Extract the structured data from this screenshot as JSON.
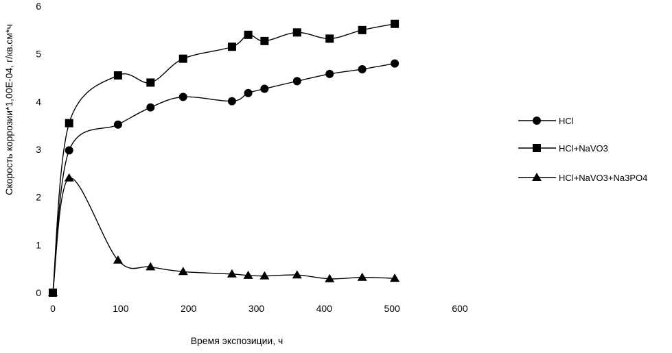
{
  "chart_data": {
    "type": "line",
    "title": "",
    "xlabel": "Время экспозиции, ч",
    "ylabel": "Скорость коррозии*1,00Е-04, г/кв.см*ч",
    "xlim": [
      0,
      600
    ],
    "ylim": [
      0,
      6
    ],
    "xticks": [
      0,
      100,
      200,
      300,
      400,
      500,
      600
    ],
    "yticks": [
      0,
      1,
      2,
      3,
      4,
      5,
      6
    ],
    "grid": false,
    "smooth": true,
    "legend_position": "right",
    "line_color": "#000000",
    "series": [
      {
        "name": "HCl",
        "marker": "circle",
        "points": [
          [
            0,
            0
          ],
          [
            24,
            2.98
          ],
          [
            96,
            3.52
          ],
          [
            144,
            3.88
          ],
          [
            192,
            4.1
          ],
          [
            264,
            4.01
          ],
          [
            288,
            4.18
          ],
          [
            312,
            4.27
          ],
          [
            360,
            4.43
          ],
          [
            408,
            4.58
          ],
          [
            456,
            4.68
          ],
          [
            504,
            4.8
          ]
        ]
      },
      {
        "name": "HCl+NaVO3",
        "marker": "square",
        "points": [
          [
            0,
            0
          ],
          [
            24,
            3.55
          ],
          [
            96,
            4.55
          ],
          [
            144,
            4.4
          ],
          [
            192,
            4.9
          ],
          [
            264,
            5.15
          ],
          [
            288,
            5.4
          ],
          [
            312,
            5.27
          ],
          [
            360,
            5.45
          ],
          [
            408,
            5.32
          ],
          [
            456,
            5.5
          ],
          [
            504,
            5.63
          ]
        ]
      },
      {
        "name": "HCl+NaVO3+Na3PO4",
        "marker": "triangle",
        "points": [
          [
            0,
            0
          ],
          [
            24,
            2.4
          ],
          [
            96,
            0.68
          ],
          [
            144,
            0.54
          ],
          [
            192,
            0.44
          ],
          [
            264,
            0.39
          ],
          [
            288,
            0.36
          ],
          [
            312,
            0.35
          ],
          [
            360,
            0.37
          ],
          [
            408,
            0.29
          ],
          [
            456,
            0.32
          ],
          [
            504,
            0.3
          ]
        ]
      }
    ]
  }
}
